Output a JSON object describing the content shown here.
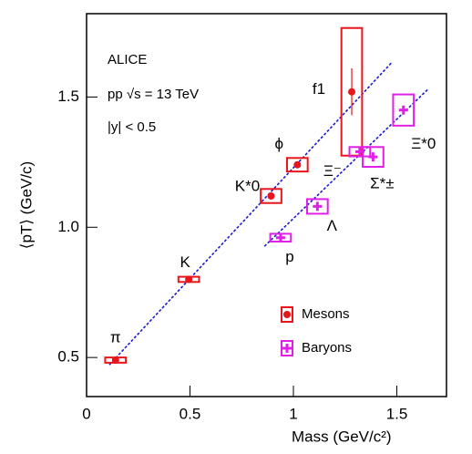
{
  "chart_data": {
    "type": "scatter",
    "xlabel": "Mass (GeV/c²)",
    "ylabel": "⟨pT⟩ (GeV/c)",
    "annotations": [
      "ALICE",
      "pp √s = 13 TeV",
      "|y| < 0.5"
    ],
    "xlim": [
      0,
      1.74
    ],
    "ylim": [
      0.35,
      1.82
    ],
    "xticks": [
      0,
      0.5,
      1,
      1.5
    ],
    "yticks": [
      0.5,
      {
        "value": 1,
        "label": "1.0"
      },
      1.5
    ],
    "legend": "bottom-right",
    "series": [
      {
        "name": "Mesons",
        "color": "#e8161b",
        "marker": "circle",
        "point_labels": [
          "π",
          "K",
          "K*0",
          "ϕ",
          "f1"
        ],
        "x": [
          0.14,
          0.494,
          0.892,
          1.019,
          1.282
        ],
        "values": [
          0.49,
          0.8,
          1.12,
          1.24,
          1.52
        ],
        "x_errors": [
          0.05,
          0.05,
          0.05,
          0.05,
          0.05
        ],
        "y_errors": [
          0.01,
          0.01,
          0.027,
          0.026,
          0.245
        ],
        "stat_errors": [
          0,
          0,
          0,
          0,
          0.09
        ]
      },
      {
        "name": "Baryons",
        "color": "#e020e8",
        "marker": "cross",
        "point_labels": [
          "p",
          "Λ",
          "Ξ⁻",
          "Σ*±",
          "Ξ*0"
        ],
        "x": [
          0.938,
          1.116,
          1.321,
          1.385,
          1.532
        ],
        "values": [
          0.96,
          1.08,
          1.29,
          1.27,
          1.45
        ],
        "x_errors": [
          0.05,
          0.05,
          0.05,
          0.05,
          0.05
        ],
        "y_errors": [
          0.015,
          0.028,
          0.018,
          0.038,
          0.06
        ],
        "stat_errors": [
          0,
          0,
          0,
          0,
          0
        ]
      }
    ],
    "fits": [
      {
        "color": "#1a1ad0",
        "x": [
          0.11,
          1.476
        ],
        "y": [
          0.472,
          1.633
        ]
      },
      {
        "color": "#1a1ad0",
        "x": [
          0.86,
          1.652
        ],
        "y": [
          0.927,
          1.531
        ]
      }
    ]
  }
}
